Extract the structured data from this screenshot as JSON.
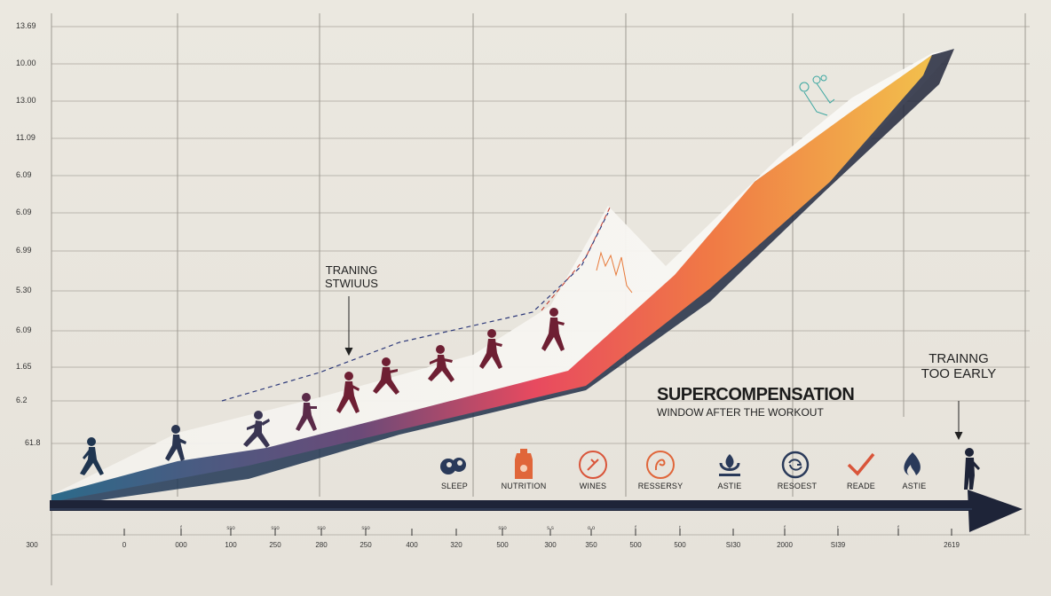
{
  "y_axis_labels": [
    "13.69",
    "10.00",
    "13.00",
    "11.09",
    "6.09",
    "6.09",
    "6.99",
    "5.30",
    "6.09",
    "1.65",
    "6.2",
    "61.8"
  ],
  "x_axis_labels": [
    "300",
    "0",
    "000",
    "100",
    "250",
    "280",
    "250",
    "400",
    "320",
    "500",
    "300",
    "350",
    "500",
    "500",
    "SI30",
    "2000",
    "SI39",
    "2619"
  ],
  "x_minor_labels": [
    "f",
    "sso",
    "sso",
    "sso",
    "sso",
    "sso",
    "s.s",
    "o.o",
    "f",
    "t",
    "f",
    "t",
    "f"
  ],
  "annotations": {
    "training_stimulus": [
      "TRANING",
      "STWIUUS"
    ],
    "supercompensation_title": "SUPERCOMPENSATION",
    "supercompensation_subtitle": "WINDOW AFTER THE WORKOUT",
    "training_too_early": [
      "TRAINNG",
      "TOO EARLY"
    ]
  },
  "recovery_icons": [
    {
      "label": "SLEEP",
      "icon": "sleep-icon",
      "color": "#2a3a5a"
    },
    {
      "label": "NUTRITION",
      "icon": "nutrition-bottle-icon",
      "color": "#e0663a"
    },
    {
      "label": "WINES",
      "icon": "wines-icon",
      "color": "#d9553a"
    },
    {
      "label": "RESSERSY",
      "icon": "resersy-icon",
      "color": "#e0663a"
    },
    {
      "label": "ASTIE",
      "icon": "astie-icon",
      "color": "#2a3a5a"
    },
    {
      "label": "RESOEST",
      "icon": "resoest-icon",
      "color": "#2a3a5a"
    },
    {
      "label": "READE",
      "icon": "checkmark-icon",
      "color": "#d9553a"
    },
    {
      "label": "ASTIE",
      "icon": "flame-icon",
      "color": "#2a3a5a"
    }
  ],
  "colors": {
    "ribbon_start": "#2c6a8a",
    "ribbon_mid": "#e84a5f",
    "ribbon_end": "#f2b24c",
    "arrow": "#1e2438",
    "runner": "#6e1f33"
  }
}
